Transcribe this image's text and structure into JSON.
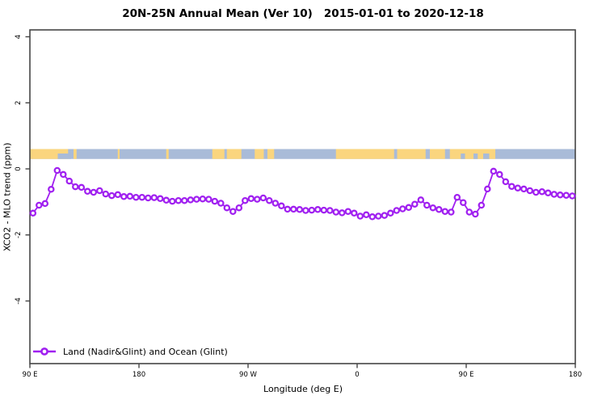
{
  "title": "20N-25N Annual Mean (Ver 10)   2015-01-01 to 2020-12-18",
  "x_axis": {
    "label": "Longitude (deg E)"
  },
  "y_axis": {
    "label": "XCO2 - MLO trend (ppm)"
  },
  "legend": {
    "label": "Land (Nadir&Glint) and Ocean (Glint)",
    "marker": "open-circle-on-line"
  },
  "colors": {
    "series": "#A020F0",
    "land": "#FAD57E",
    "ocean": "#A9BBD8",
    "frame": "#454545",
    "text": "#000000",
    "background": "#ffffff"
  },
  "chart_data": {
    "type": "line",
    "title": "20N-25N Annual Mean (Ver 10)   2015-01-01 to 2020-12-18",
    "xlabel": "Longitude (deg E)",
    "ylabel": "XCO2 - MLO trend (ppm)",
    "xlim": [
      90,
      540
    ],
    "ylim": [
      -5.9,
      4.2
    ],
    "x_ticks_deg": [
      90,
      180,
      270,
      360,
      450,
      540
    ],
    "x_tick_labels": [
      "90 E",
      "180",
      "90 W",
      "0",
      "90 E",
      "180"
    ],
    "y_ticks": [
      4,
      2,
      0,
      -2,
      -4
    ],
    "grid": false,
    "legend_position": "bottom-left-inside",
    "series": [
      {
        "name": "Land (Nadir&Glint) and Ocean (Glint)",
        "color": "#A020F0",
        "marker": "open-circle",
        "x": [
          92.5,
          97.5,
          102.5,
          107.5,
          112.5,
          117.5,
          122.5,
          127.5,
          132.5,
          137.5,
          142.5,
          147.5,
          152.5,
          157.5,
          162.5,
          167.5,
          172.5,
          177.5,
          182.5,
          187.5,
          192.5,
          197.5,
          202.5,
          207.5,
          212.5,
          217.5,
          222.5,
          227.5,
          232.5,
          237.5,
          242.5,
          247.5,
          252.5,
          257.5,
          262.5,
          267.5,
          272.5,
          277.5,
          282.5,
          287.5,
          292.5,
          297.5,
          302.5,
          307.5,
          312.5,
          317.5,
          322.5,
          327.5,
          332.5,
          337.5,
          342.5,
          347.5,
          352.5,
          357.5,
          362.5,
          367.5,
          372.5,
          377.5,
          382.5,
          387.5,
          392.5,
          397.5,
          402.5,
          407.5,
          412.5,
          417.5,
          422.5,
          427.5,
          432.5,
          437.5,
          442.5,
          447.5,
          452.5,
          457.5,
          462.5,
          467.5,
          472.5,
          477.5,
          482.5,
          487.5,
          492.5,
          497.5,
          502.5,
          507.5,
          512.5,
          517.5,
          522.5,
          527.5,
          532.5,
          537.5
        ],
        "values": [
          -1.34,
          -1.1,
          -1.05,
          -0.62,
          -0.05,
          -0.17,
          -0.37,
          -0.54,
          -0.56,
          -0.68,
          -0.71,
          -0.66,
          -0.76,
          -0.81,
          -0.78,
          -0.84,
          -0.83,
          -0.86,
          -0.86,
          -0.88,
          -0.87,
          -0.9,
          -0.95,
          -0.98,
          -0.96,
          -0.96,
          -0.94,
          -0.92,
          -0.91,
          -0.92,
          -0.98,
          -1.04,
          -1.18,
          -1.29,
          -1.18,
          -0.96,
          -0.9,
          -0.92,
          -0.88,
          -0.96,
          -1.04,
          -1.12,
          -1.22,
          -1.22,
          -1.23,
          -1.26,
          -1.25,
          -1.23,
          -1.25,
          -1.26,
          -1.31,
          -1.33,
          -1.29,
          -1.34,
          -1.43,
          -1.39,
          -1.45,
          -1.43,
          -1.41,
          -1.34,
          -1.26,
          -1.21,
          -1.17,
          -1.07,
          -0.94,
          -1.1,
          -1.18,
          -1.23,
          -1.29,
          -1.31,
          -0.86,
          -1.02,
          -1.31,
          -1.37,
          -1.1,
          -0.61,
          -0.07,
          -0.17,
          -0.39,
          -0.53,
          -0.58,
          -0.61,
          -0.66,
          -0.71,
          -0.69,
          -0.73,
          -0.77,
          -0.79,
          -0.8,
          -0.82
        ]
      }
    ],
    "map_band": {
      "description": "land/ocean strip for latitude band 20N-25N",
      "value_range": [
        0.3,
        0.6
      ],
      "ocean_color": "#A9BBD8",
      "land_color": "#FAD57E",
      "land_segments_deg": [
        [
          90,
          121.5
        ],
        [
          126,
          128.5
        ],
        [
          162.5,
          164
        ],
        [
          202.5,
          204.5
        ],
        [
          240.5,
          250.5
        ],
        [
          252.5,
          264.5
        ],
        [
          275.5,
          283
        ],
        [
          286,
          291.5
        ],
        [
          342.5,
          390.5
        ],
        [
          393,
          416.5
        ],
        [
          420,
          432.5
        ],
        [
          436.5,
          474
        ]
      ],
      "ocean_notches_deg": [
        [
          113,
          124
        ],
        [
          445.5,
          449
        ],
        [
          456,
          459.5
        ],
        [
          464,
          469
        ]
      ]
    }
  }
}
